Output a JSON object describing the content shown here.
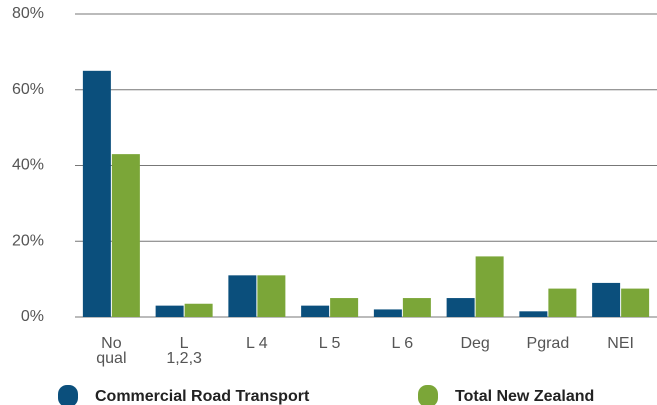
{
  "chart_data": {
    "type": "bar",
    "categories": [
      "No qual",
      "L 1,2,3",
      "L 4",
      "L 5",
      "L 6",
      "Deg",
      "Pgrad",
      "NEI"
    ],
    "series": [
      {
        "name": "Commercial Road Transport",
        "color": "#0b4f7c",
        "values": [
          65,
          3,
          11,
          3,
          2,
          5,
          1.5,
          9
        ]
      },
      {
        "name": "Total New Zealand",
        "color": "#7ba638",
        "values": [
          43,
          3.5,
          11,
          5,
          5,
          16,
          7.5,
          7.5
        ]
      }
    ],
    "ylim": [
      0,
      80
    ],
    "yticks": [
      {
        "value": 0,
        "label": "0%"
      },
      {
        "value": 20,
        "label": "20%"
      },
      {
        "value": 40,
        "label": "40%"
      },
      {
        "value": 60,
        "label": "60%"
      },
      {
        "value": 80,
        "label": "80%"
      }
    ],
    "grid": true,
    "legend": "bottom"
  }
}
